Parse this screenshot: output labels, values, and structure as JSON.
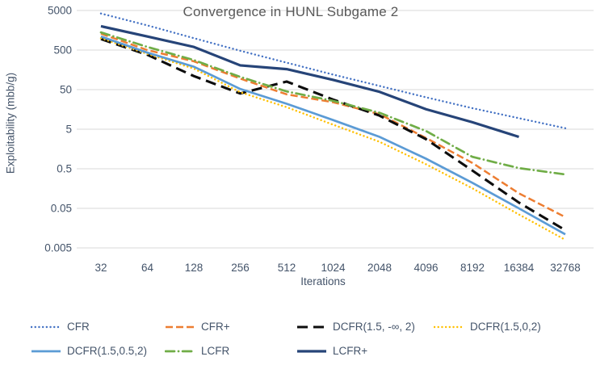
{
  "title": "Convergence in HUNL Subgame 2",
  "axes": {
    "y_label": "Exploitability (mbb/g)",
    "x_label": "Iterations"
  },
  "colors": {
    "gridline": "#D9D9D9",
    "axis_text": "#44546A",
    "title_text": "#595959"
  },
  "chart_data": {
    "type": "line",
    "title": "Convergence in HUNL Subgame 2",
    "xlabel": "Iterations",
    "ylabel": "Exploitability (mbb/g)",
    "x_scale": "log2",
    "y_scale": "log10",
    "grid": "horizontal",
    "legend_position": "bottom",
    "ylim": [
      0.005,
      5000
    ],
    "y_ticks": [
      5000,
      500,
      50,
      5,
      0.5,
      0.05,
      0.005
    ],
    "x_ticks": [
      32,
      64,
      128,
      256,
      512,
      1024,
      2048,
      4096,
      8192,
      16384,
      32768
    ],
    "series": [
      {
        "name": "CFR",
        "color": "#4472C4",
        "style": "dotted",
        "values": [
          4200,
          2100,
          1000,
          480,
          240,
          120,
          62,
          32,
          17,
          9.5,
          5.3
        ]
      },
      {
        "name": "CFR+",
        "color": "#ED7D31",
        "style": "dashed",
        "values": [
          1300,
          500,
          260,
          95,
          38,
          24,
          12,
          3.0,
          0.7,
          0.12,
          0.03
        ]
      },
      {
        "name": "DCFR(1.5, -∞, 2)",
        "color": "#0d0d0d",
        "style": "long-dash",
        "values": [
          950,
          380,
          110,
          40,
          80,
          28,
          11,
          2.8,
          0.45,
          0.07,
          0.014
        ]
      },
      {
        "name": "DCFR(1.5,0,2)",
        "color": "#FFC000",
        "style": "dotted",
        "values": [
          1000,
          400,
          170,
          43,
          18,
          6.5,
          2.4,
          0.65,
          0.16,
          0.035,
          0.008
        ]
      },
      {
        "name": "DCFR(1.5,0.5,2)",
        "color": "#5B9BD5",
        "style": "solid",
        "values": [
          1100,
          430,
          190,
          52,
          22,
          8.5,
          3.2,
          0.9,
          0.22,
          0.05,
          0.011
        ]
      },
      {
        "name": "LCFR",
        "color": "#70AD47",
        "style": "dash-dot",
        "values": [
          1400,
          600,
          280,
          105,
          45,
          26,
          13,
          4.5,
          1.0,
          0.52,
          0.36
        ]
      },
      {
        "name": "LCFR+",
        "color": "#264478",
        "style": "solid-bold",
        "values": [
          2000,
          1100,
          600,
          205,
          165,
          88,
          44,
          16,
          7.5,
          3.2,
          null
        ]
      }
    ]
  }
}
